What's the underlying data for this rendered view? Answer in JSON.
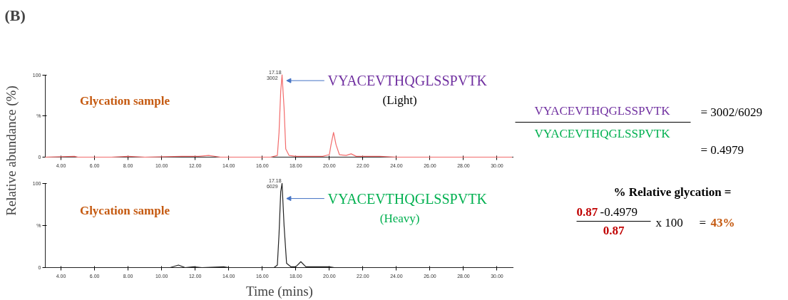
{
  "chart_data": [
    {
      "type": "line",
      "title": "(B)",
      "ylabel": "Relative abundance (%)",
      "xlim": [
        3.06,
        31.0
      ],
      "ylim": [
        0,
        100
      ],
      "xticks": [
        {
          "value": 4,
          "label": "4.00"
        },
        {
          "value": 6,
          "label": "6.00"
        },
        {
          "value": 8,
          "label": "8.00"
        },
        {
          "value": 10,
          "label": "10.00"
        },
        {
          "value": 12,
          "label": "12.00"
        },
        {
          "value": 14,
          "label": "14.00"
        },
        {
          "value": 16,
          "label": "16.00"
        },
        {
          "value": 18,
          "label": "18.00"
        },
        {
          "value": 20,
          "label": "20.00"
        },
        {
          "value": 22,
          "label": "22.00"
        },
        {
          "value": 24,
          "label": "24.00"
        },
        {
          "value": 26,
          "label": "26.00"
        },
        {
          "value": 28,
          "label": "28.00"
        },
        {
          "value": 30,
          "label": "30.00"
        }
      ],
      "yticks": [
        0,
        {
          "value": 50,
          "label": "%"
        },
        100
      ],
      "series": [
        {
          "color": "#f26b6b",
          "x": [
            3.06,
            4.8,
            5.0,
            7.0,
            8.0,
            9.0,
            11.2,
            12.2,
            12.8,
            13.5,
            16.5,
            16.9,
            17.0,
            17.1,
            17.18,
            17.3,
            17.4,
            17.6,
            18.0,
            19.0,
            19.6,
            20.0,
            20.1,
            20.25,
            20.4,
            20.6,
            21.0,
            21.3,
            21.6,
            23.0,
            24.0,
            30.9
          ],
          "values": [
            0,
            1,
            0,
            0,
            1,
            0,
            1,
            1,
            2,
            0,
            0,
            2,
            30,
            80,
            100,
            60,
            10,
            2,
            1,
            1,
            1,
            3,
            15,
            30,
            15,
            3,
            2,
            4,
            1,
            1,
            0,
            0
          ]
        }
      ],
      "annotations": [
        "17.18",
        "3002",
        {
          "text": "VYACEVTHQGLSSPVTK",
          "x": 17.45,
          "y": 93
        },
        "(Light)",
        "Glycation sample"
      ]
    },
    {
      "type": "line",
      "xlabel": "Time (mins)",
      "xlim": [
        3.06,
        31.0
      ],
      "ylim": [
        0,
        100
      ],
      "xticks": [
        {
          "value": 4,
          "label": "4.00"
        },
        {
          "value": 6,
          "label": "6.00"
        },
        {
          "value": 8,
          "label": "8.00"
        },
        {
          "value": 10,
          "label": "10.00"
        },
        {
          "value": 12,
          "label": "12.00"
        },
        {
          "value": 14,
          "label": "14.00"
        },
        {
          "value": 16,
          "label": "16.00"
        },
        {
          "value": 18,
          "label": "18.00"
        },
        {
          "value": 20,
          "label": "20.00"
        },
        {
          "value": 22,
          "label": "22.00"
        },
        {
          "value": 24,
          "label": "24.00"
        },
        {
          "value": 26,
          "label": "26.00"
        },
        {
          "value": 28,
          "label": "28.00"
        },
        {
          "value": 30,
          "label": "30.00"
        }
      ],
      "yticks": [
        0,
        {
          "value": 50,
          "label": "%"
        },
        100
      ],
      "series": [
        {
          "color": "#222222",
          "x": [
            3.06,
            10.5,
            11.0,
            11.4,
            11.9,
            12.4,
            13.7,
            14.0,
            16.7,
            16.9,
            17.0,
            17.1,
            17.18,
            17.3,
            17.45,
            17.7,
            18.0,
            18.3,
            18.6,
            20.0,
            20.3,
            30.9
          ],
          "values": [
            0,
            0,
            3,
            0,
            1,
            0,
            1,
            0,
            0,
            3,
            40,
            90,
            100,
            50,
            5,
            1,
            1,
            7,
            1,
            1,
            0,
            0
          ]
        }
      ],
      "annotations": [
        "17.18",
        "6029",
        {
          "text": "VYACEVTHQGLSSPVTK",
          "x": 17.45,
          "y": 82
        },
        "(Heavy)",
        "Glycation sample"
      ]
    },
    {
      "type": "other",
      "annotations": [
        "VYACEVTHQGLSSPVTK",
        "VYACEVTHQGLSSPVTK",
        "= 3002/6029",
        "= 0.4979",
        "% Relative glycation =",
        "0.87",
        "-0.4979",
        "0.87",
        "x 100",
        "=",
        "43%"
      ]
    }
  ]
}
